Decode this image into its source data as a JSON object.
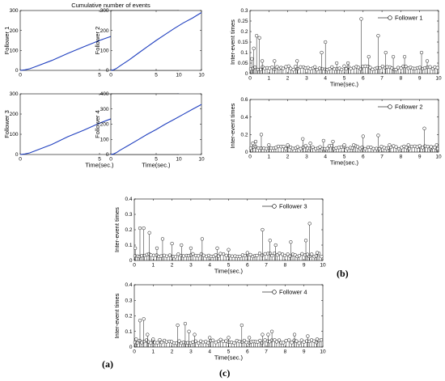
{
  "figure": {
    "main_title": "Cumulative number of events",
    "captions": [
      "(a)",
      "(b)",
      "(c)"
    ]
  },
  "chart_data": [
    {
      "type": "line",
      "panel": "a1",
      "title": "Cumulative number of events",
      "xlabel": "",
      "ylabel": "Follower 1",
      "xlim": [
        0,
        10
      ],
      "ylim": [
        0,
        300
      ],
      "xticks": [
        0,
        5,
        10
      ],
      "yticks": [
        0,
        100,
        200,
        300
      ],
      "series": [
        {
          "color": "#1f3fbf",
          "x": [
            0,
            0.3,
            0.6,
            1,
            2,
            3,
            4,
            5,
            6,
            7,
            8,
            9,
            10
          ],
          "y": [
            0,
            3,
            8,
            20,
            50,
            85,
            118,
            150,
            178,
            208,
            237,
            266,
            295
          ]
        }
      ]
    },
    {
      "type": "line",
      "panel": "a2",
      "xlabel": "",
      "ylabel": "Follower 2",
      "xlim": [
        0,
        10
      ],
      "ylim": [
        0,
        300
      ],
      "xticks": [
        0,
        5,
        10
      ],
      "yticks": [
        0,
        100,
        200,
        300
      ],
      "series": [
        {
          "color": "#1f3fbf",
          "x": [
            0,
            0.3,
            0.6,
            1,
            2,
            3,
            4,
            5,
            6,
            7,
            8,
            9,
            10
          ],
          "y": [
            0,
            3,
            9,
            22,
            52,
            85,
            118,
            150,
            180,
            210,
            238,
            262,
            290
          ]
        }
      ]
    },
    {
      "type": "line",
      "panel": "a3",
      "xlabel": "Time(sec.)",
      "ylabel": "Follower 3",
      "xlim": [
        0,
        10
      ],
      "ylim": [
        0,
        300
      ],
      "xticks": [
        0,
        5,
        10
      ],
      "yticks": [
        0,
        100,
        200,
        300
      ],
      "series": [
        {
          "color": "#1f3fbf",
          "x": [
            0,
            0.3,
            0.6,
            1,
            2,
            3,
            4,
            5,
            6,
            7,
            8,
            9,
            10
          ],
          "y": [
            0,
            3,
            8,
            20,
            50,
            88,
            120,
            155,
            185,
            215,
            245,
            275,
            300
          ]
        }
      ]
    },
    {
      "type": "line",
      "panel": "a4",
      "xlabel": "Time(sec.)",
      "ylabel": "Follower 4",
      "xlim": [
        0,
        10
      ],
      "ylim": [
        0,
        400
      ],
      "xticks": [
        0,
        5,
        10
      ],
      "yticks": [
        0,
        100,
        200,
        300,
        400
      ],
      "series": [
        {
          "color": "#1f3fbf",
          "x": [
            0,
            0.3,
            0.6,
            1,
            2,
            3,
            4,
            5,
            6,
            7,
            8,
            9,
            10
          ],
          "y": [
            0,
            4,
            12,
            28,
            62,
            97,
            133,
            165,
            200,
            232,
            265,
            298,
            330
          ]
        }
      ]
    },
    {
      "type": "stem",
      "panel": "b1",
      "xlabel": "Time(sec.)",
      "ylabel": "Inter-event times",
      "legend": "Follower 1",
      "legend_position": "top-right",
      "xlim": [
        0,
        10
      ],
      "ylim": [
        0,
        0.3
      ],
      "xticks": [
        0,
        1,
        2,
        3,
        4,
        5,
        6,
        7,
        8,
        9,
        10
      ],
      "yticks": [
        0,
        0.05,
        0.1,
        0.15,
        0.2,
        0.25,
        0.3
      ],
      "seed": 11,
      "peaks": [
        [
          0.1,
          0.07
        ],
        [
          0.2,
          0.12
        ],
        [
          0.35,
          0.18
        ],
        [
          0.5,
          0.17
        ],
        [
          0.65,
          0.06
        ],
        [
          1.3,
          0.06
        ],
        [
          2.5,
          0.06
        ],
        [
          3.8,
          0.1
        ],
        [
          4.0,
          0.15
        ],
        [
          4.6,
          0.05
        ],
        [
          5.2,
          0.05
        ],
        [
          5.9,
          0.26
        ],
        [
          6.3,
          0.08
        ],
        [
          6.8,
          0.18
        ],
        [
          7.2,
          0.1
        ],
        [
          7.6,
          0.08
        ],
        [
          8.2,
          0.08
        ],
        [
          9.1,
          0.1
        ],
        [
          9.4,
          0.06
        ]
      ]
    },
    {
      "type": "stem",
      "panel": "b2",
      "xlabel": "Time(sec.)",
      "ylabel": "Inter-event times",
      "legend": "Follower 2",
      "legend_position": "top-right",
      "xlim": [
        0,
        10
      ],
      "ylim": [
        0,
        0.6
      ],
      "xticks": [
        0,
        1,
        2,
        3,
        4,
        5,
        6,
        7,
        8,
        9,
        10
      ],
      "yticks": [
        0,
        0.2,
        0.4,
        0.6
      ],
      "seed": 23,
      "peaks": [
        [
          0.15,
          0.1
        ],
        [
          0.3,
          0.12
        ],
        [
          0.6,
          0.2
        ],
        [
          1.0,
          0.08
        ],
        [
          2.0,
          0.08
        ],
        [
          2.8,
          0.15
        ],
        [
          3.2,
          0.1
        ],
        [
          3.9,
          0.13
        ],
        [
          4.4,
          0.12
        ],
        [
          5.0,
          0.08
        ],
        [
          5.5,
          0.08
        ],
        [
          6.0,
          0.18
        ],
        [
          6.8,
          0.19
        ],
        [
          7.4,
          0.08
        ],
        [
          8.4,
          0.08
        ],
        [
          9.0,
          0.07
        ],
        [
          9.25,
          0.27
        ],
        [
          9.6,
          0.06
        ],
        [
          9.9,
          0.08
        ]
      ]
    },
    {
      "type": "stem",
      "panel": "c1",
      "xlabel": "Time(sec.)",
      "ylabel": "Inter-event times",
      "legend": "Follower 3",
      "legend_position": "top-right",
      "xlim": [
        0,
        10
      ],
      "ylim": [
        0,
        0.4
      ],
      "xticks": [
        0,
        1,
        2,
        3,
        4,
        5,
        6,
        7,
        8,
        9,
        10
      ],
      "yticks": [
        0,
        0.1,
        0.2,
        0.3,
        0.4
      ],
      "seed": 37,
      "peaks": [
        [
          0.05,
          0.08
        ],
        [
          0.3,
          0.21
        ],
        [
          0.5,
          0.21
        ],
        [
          0.8,
          0.18
        ],
        [
          1.2,
          0.08
        ],
        [
          1.5,
          0.14
        ],
        [
          2.0,
          0.11
        ],
        [
          2.5,
          0.1
        ],
        [
          3.0,
          0.08
        ],
        [
          3.6,
          0.14
        ],
        [
          4.4,
          0.08
        ],
        [
          5.0,
          0.07
        ],
        [
          6.0,
          0.05
        ],
        [
          6.8,
          0.2
        ],
        [
          7.2,
          0.13
        ],
        [
          7.5,
          0.1
        ],
        [
          8.3,
          0.12
        ],
        [
          9.1,
          0.13
        ],
        [
          9.3,
          0.24
        ],
        [
          9.7,
          0.05
        ]
      ]
    },
    {
      "type": "stem",
      "panel": "c2",
      "xlabel": "Time(sec.)",
      "ylabel": "Inter-event times",
      "legend": "Follower 4",
      "legend_position": "top-right",
      "xlim": [
        0,
        10
      ],
      "ylim": [
        0,
        0.4
      ],
      "xticks": [
        0,
        1,
        2,
        3,
        4,
        5,
        6,
        7,
        8,
        9,
        10
      ],
      "yticks": [
        0,
        0.1,
        0.2,
        0.3,
        0.4
      ],
      "seed": 53,
      "peaks": [
        [
          0.1,
          0.05
        ],
        [
          0.3,
          0.17
        ],
        [
          0.5,
          0.18
        ],
        [
          0.7,
          0.08
        ],
        [
          1.0,
          0.05
        ],
        [
          2.3,
          0.14
        ],
        [
          2.7,
          0.15
        ],
        [
          2.9,
          0.1
        ],
        [
          3.2,
          0.08
        ],
        [
          4.0,
          0.06
        ],
        [
          5.0,
          0.06
        ],
        [
          5.7,
          0.14
        ],
        [
          6.1,
          0.06
        ],
        [
          6.8,
          0.08
        ],
        [
          7.1,
          0.08
        ],
        [
          7.3,
          0.1
        ],
        [
          8.5,
          0.08
        ],
        [
          9.2,
          0.07
        ],
        [
          9.7,
          0.05
        ]
      ]
    }
  ]
}
